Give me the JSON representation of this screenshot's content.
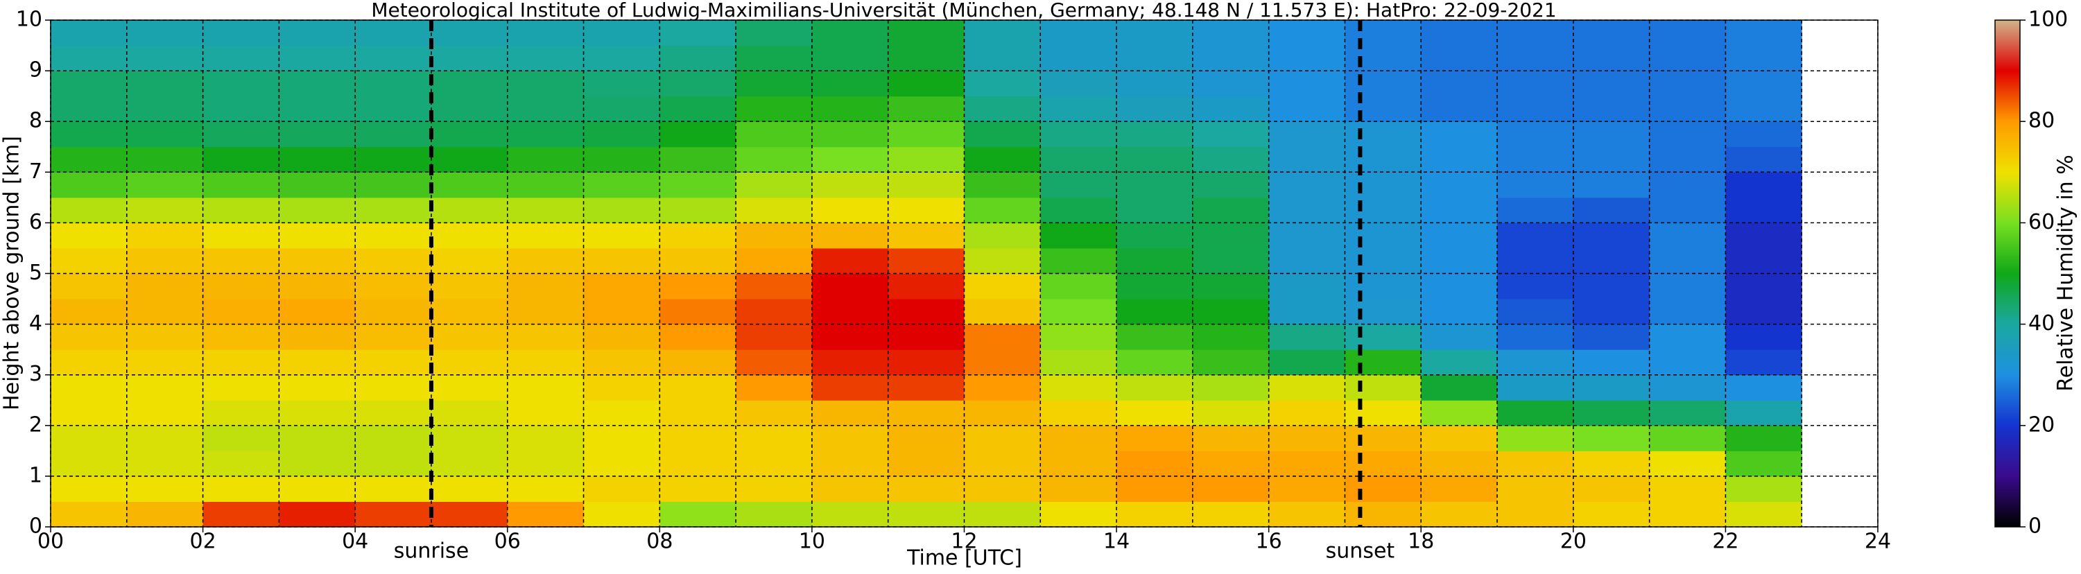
{
  "chart_data": {
    "type": "heatmap",
    "title": "Meteorological Institute of Ludwig-Maximilians-Universität (München, Germany; 48.148 N / 11.573 E):    HatPro: 22-09-2021",
    "x_label": "Time [UTC]",
    "y_label": "Height above ground [km]",
    "colorbar_label": "Relative Humidity in %",
    "x_edges": [
      0,
      1,
      2,
      3,
      4,
      5,
      6,
      7,
      8,
      9,
      10,
      11,
      12,
      13,
      14,
      15,
      16,
      17,
      18,
      19,
      20,
      21,
      22,
      23
    ],
    "y_edges": [
      0,
      0.5,
      1,
      1.5,
      2,
      2.5,
      3,
      3.5,
      4,
      4.5,
      5,
      5.5,
      6,
      6.5,
      7,
      7.5,
      8,
      8.5,
      9,
      9.5,
      10
    ],
    "z": [
      [
        74,
        70,
        68,
        68,
        70,
        70,
        72,
        74,
        76,
        74,
        72,
        70,
        65,
        56,
        52,
        46,
        44,
        44,
        40,
        38
      ],
      [
        76,
        70,
        68,
        68,
        70,
        70,
        72,
        74,
        76,
        76,
        74,
        72,
        66,
        57,
        52,
        46,
        44,
        44,
        40,
        38
      ],
      [
        86,
        70,
        67,
        66,
        68,
        70,
        72,
        75,
        77,
        76,
        74,
        70,
        65,
        56,
        50,
        45,
        43,
        43,
        40,
        38
      ],
      [
        88,
        70,
        66,
        66,
        68,
        70,
        72,
        76,
        78,
        76,
        74,
        70,
        64,
        55,
        50,
        45,
        43,
        43,
        40,
        38
      ],
      [
        86,
        70,
        66,
        66,
        68,
        70,
        72,
        75,
        76,
        75,
        73,
        70,
        64,
        55,
        50,
        45,
        43,
        43,
        40,
        38
      ],
      [
        86,
        70,
        67,
        67,
        68,
        70,
        72,
        74,
        75,
        74,
        72,
        70,
        65,
        56,
        50,
        46,
        44,
        44,
        40,
        38
      ],
      [
        80,
        70,
        68,
        68,
        70,
        70,
        72,
        74,
        76,
        76,
        74,
        70,
        65,
        56,
        52,
        46,
        44,
        44,
        40,
        38
      ],
      [
        70,
        72,
        70,
        70,
        70,
        72,
        74,
        76,
        78,
        78,
        74,
        70,
        64,
        57,
        52,
        47,
        44,
        43,
        40,
        38
      ],
      [
        62,
        72,
        72,
        72,
        72,
        72,
        76,
        80,
        82,
        80,
        74,
        72,
        64,
        58,
        54,
        50,
        46,
        44,
        42,
        40
      ],
      [
        64,
        72,
        72,
        72,
        74,
        80,
        84,
        86,
        86,
        84,
        78,
        76,
        68,
        64,
        58,
        56,
        52,
        48,
        46,
        44
      ],
      [
        66,
        74,
        74,
        74,
        76,
        86,
        88,
        90,
        90,
        90,
        88,
        76,
        70,
        66,
        60,
        56,
        52,
        48,
        46,
        46
      ],
      [
        66,
        74,
        76,
        76,
        76,
        86,
        88,
        90,
        90,
        88,
        86,
        74,
        70,
        66,
        62,
        58,
        54,
        50,
        48,
        48
      ],
      [
        66,
        74,
        74,
        74,
        76,
        80,
        82,
        82,
        74,
        72,
        66,
        64,
        58,
        54,
        50,
        46,
        42,
        40,
        38,
        38
      ],
      [
        70,
        76,
        76,
        76,
        72,
        68,
        64,
        62,
        60,
        58,
        54,
        50,
        46,
        44,
        44,
        42,
        38,
        36,
        34,
        34
      ],
      [
        72,
        80,
        80,
        78,
        70,
        66,
        58,
        54,
        50,
        48,
        48,
        46,
        44,
        44,
        44,
        42,
        36,
        34,
        34,
        34
      ],
      [
        72,
        80,
        78,
        76,
        68,
        64,
        54,
        52,
        50,
        48,
        46,
        46,
        46,
        44,
        42,
        40,
        34,
        32,
        32,
        32
      ],
      [
        74,
        78,
        78,
        76,
        72,
        68,
        46,
        42,
        34,
        34,
        33,
        33,
        33,
        33,
        33,
        33,
        30,
        30,
        30,
        30
      ],
      [
        76,
        80,
        78,
        76,
        70,
        66,
        52,
        40,
        33,
        32,
        32,
        32,
        32,
        32,
        32,
        32,
        28,
        28,
        28,
        28
      ],
      [
        74,
        78,
        76,
        74,
        62,
        48,
        40,
        32,
        30,
        30,
        30,
        30,
        30,
        30,
        30,
        30,
        27,
        27,
        27,
        27
      ],
      [
        74,
        74,
        74,
        62,
        48,
        34,
        32,
        26,
        24,
        22,
        22,
        22,
        26,
        28,
        28,
        28,
        27,
        27,
        27,
        27
      ],
      [
        72,
        74,
        72,
        60,
        46,
        34,
        30,
        24,
        22,
        22,
        22,
        22,
        24,
        28,
        28,
        28,
        27,
        27,
        27,
        27
      ],
      [
        72,
        72,
        70,
        58,
        44,
        32,
        30,
        30,
        28,
        28,
        28,
        28,
        27,
        27,
        27,
        27,
        27,
        27,
        27,
        27
      ],
      [
        68,
        64,
        56,
        52,
        38,
        30,
        22,
        20,
        18,
        18,
        18,
        18,
        20,
        20,
        24,
        26,
        28,
        28,
        28,
        28
      ]
    ],
    "colorscale": [
      "#000000",
      "#3a0a8c",
      "#1434d0",
      "#1e90e0",
      "#1aa8a0",
      "#10a818",
      "#78e020",
      "#f0e000",
      "#ff9a00",
      "#e00000",
      "#d2b48c"
    ],
    "xlim": [
      0,
      24
    ],
    "ylim": [
      0,
      10
    ],
    "zlim": [
      0,
      100
    ],
    "xticks": [
      {
        "value": 0,
        "label": "00"
      },
      {
        "value": 2,
        "label": "02"
      },
      {
        "value": 4,
        "label": "04"
      },
      {
        "value": 6,
        "label": "06"
      },
      {
        "value": 8,
        "label": "08"
      },
      10,
      12,
      14,
      16,
      18,
      20,
      22,
      24
    ],
    "xminorticks": [
      1,
      3,
      5,
      7,
      9,
      11,
      13,
      15,
      17,
      19,
      21,
      23
    ],
    "yticks": [
      0,
      1,
      2,
      3,
      4,
      5,
      6,
      7,
      8,
      9,
      10
    ],
    "zticks": [
      0,
      20,
      40,
      60,
      80,
      100
    ],
    "grid": true,
    "annotations": [
      {
        "x": 5.0,
        "label": "sunrise"
      },
      {
        "x": 17.2,
        "label": "sunset"
      }
    ]
  }
}
